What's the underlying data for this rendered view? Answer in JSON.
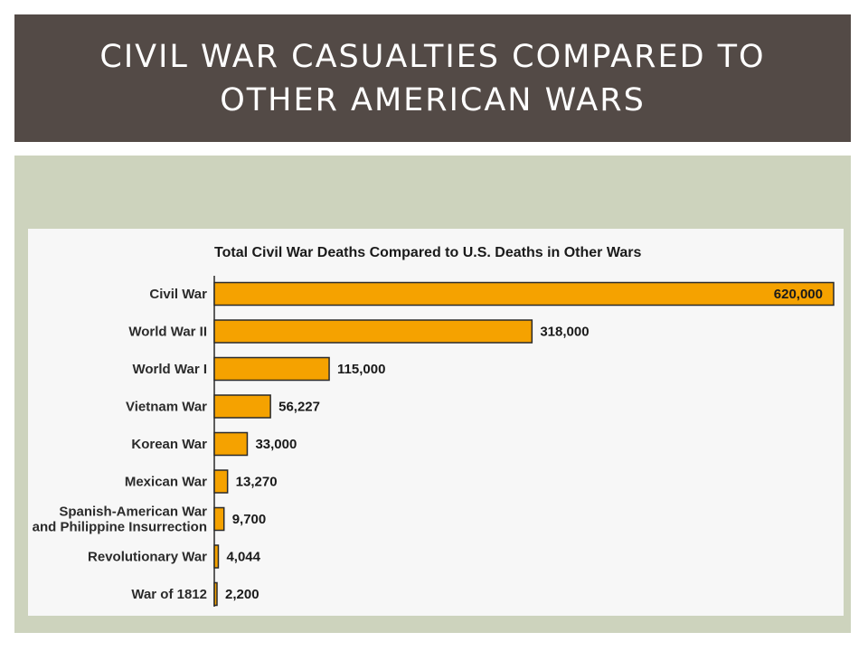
{
  "slide": {
    "title": "CIVIL WAR CASUALTIES COMPARED TO OTHER AMERICAN WARS"
  },
  "colors": {
    "title_band": "#534a46",
    "panel": "#cdd3bd",
    "bar": "#f5a200"
  },
  "chart_data": {
    "type": "bar",
    "orientation": "horizontal",
    "title": "Total Civil War Deaths Compared to U.S. Deaths in Other Wars",
    "categories": [
      [
        "Civil War"
      ],
      [
        "World War II"
      ],
      [
        "World War I"
      ],
      [
        "Vietnam War"
      ],
      [
        "Korean War"
      ],
      [
        "Mexican War"
      ],
      [
        "Spanish-American War",
        "and Philippine Insurrection"
      ],
      [
        "Revolutionary War"
      ],
      [
        "War of 1812"
      ]
    ],
    "values": [
      620000,
      318000,
      115000,
      56227,
      33000,
      13270,
      9700,
      4044,
      2200
    ],
    "value_labels": [
      "620,000",
      "318,000",
      "115,000",
      "56,227",
      "33,000",
      "13,270",
      "9,700",
      "4,044",
      "2,200"
    ],
    "xlim": [
      0,
      620000
    ],
    "grid": false,
    "legend": "none"
  }
}
